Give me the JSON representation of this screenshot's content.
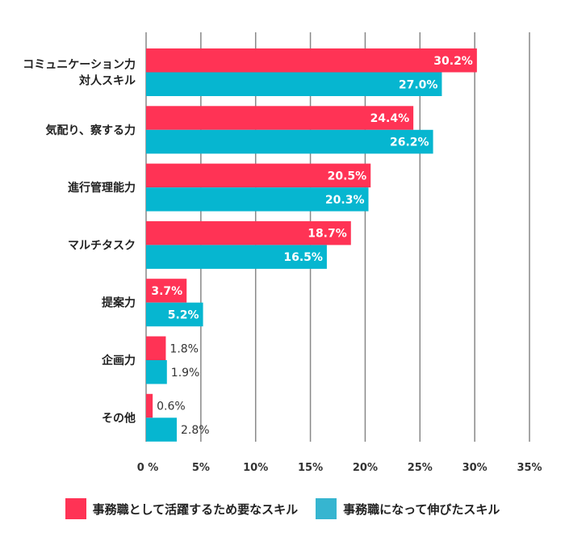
{
  "chart_data": {
    "type": "bar",
    "orientation": "horizontal",
    "categories": [
      [
        "コミュニケーション力",
        "対人スキル"
      ],
      [
        "気配り、察する力"
      ],
      [
        "進行管理能力"
      ],
      [
        "マルチタスク"
      ],
      [
        "提案力"
      ],
      [
        "企画力"
      ],
      [
        "その他"
      ]
    ],
    "series": [
      {
        "name": "事務職として活躍するため要なスキル",
        "color": "#FF3355",
        "values": [
          30.2,
          24.4,
          20.5,
          18.7,
          3.7,
          1.8,
          0.6
        ]
      },
      {
        "name": "事務職になって伸びたスキル",
        "color": "#06B6D0",
        "values": [
          27.0,
          26.2,
          20.3,
          16.5,
          5.2,
          1.9,
          2.8
        ]
      }
    ],
    "data_labels": [
      [
        "30.2%",
        "24.4%",
        "20.5%",
        "18.7%",
        "3.7%",
        "1.8%",
        "0.6%"
      ],
      [
        "27.0%",
        "26.2%",
        "20.3%",
        "16.5%",
        "5.2%",
        "1.9%",
        "2.8%"
      ]
    ],
    "xlim": [
      0,
      35
    ],
    "xticks": [
      0,
      5,
      10,
      15,
      20,
      25,
      30,
      35
    ],
    "xtick_labels": [
      "0 %",
      "5%",
      "10%",
      "15%",
      "20%",
      "25%",
      "30%",
      "35%"
    ],
    "grid": "vertical",
    "legend": "bottom",
    "legend_colors": [
      "#FF3355",
      "#36B5D0"
    ]
  }
}
